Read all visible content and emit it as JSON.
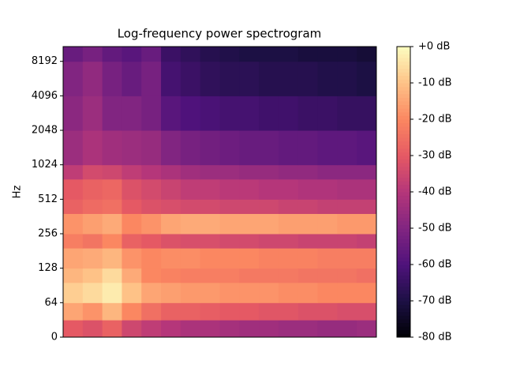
{
  "chart_data": {
    "type": "heatmap",
    "title": "Log-frequency power spectrogram",
    "ylabel": "Hz",
    "yscale": "symlog",
    "colormap": "magma",
    "ylim": [
      0,
      11025
    ],
    "yticks": [
      0,
      64,
      128,
      256,
      512,
      1024,
      2048,
      4096,
      8192
    ],
    "y_edges": [
      0,
      32,
      64,
      96,
      128,
      192,
      256,
      384,
      512,
      768,
      1024,
      2048,
      4096,
      8192,
      11025
    ],
    "z": [
      [
        -30,
        -32,
        -28,
        -35,
        -38,
        -40,
        -42,
        -42,
        -43,
        -44,
        -44,
        -45,
        -45,
        -46,
        -46,
        -45
      ],
      [
        -15,
        -18,
        -12,
        -20,
        -25,
        -28,
        -28,
        -29,
        -30,
        -30,
        -31,
        -31,
        -32,
        -32,
        -33,
        -33
      ],
      [
        -8,
        -6,
        -3,
        -10,
        -15,
        -16,
        -17,
        -17,
        -18,
        -18,
        -18,
        -19,
        -19,
        -20,
        -20,
        -20
      ],
      [
        -12,
        -10,
        -6,
        -14,
        -20,
        -21,
        -22,
        -22,
        -22,
        -23,
        -23,
        -23,
        -24,
        -24,
        -24,
        -25
      ],
      [
        -15,
        -14,
        -12,
        -18,
        -20,
        -19,
        -19,
        -20,
        -20,
        -20,
        -21,
        -21,
        -21,
        -22,
        -22,
        -22
      ],
      [
        -22,
        -24,
        -20,
        -28,
        -30,
        -32,
        -33,
        -33,
        -34,
        -34,
        -35,
        -35,
        -36,
        -36,
        -36,
        -37
      ],
      [
        -18,
        -16,
        -14,
        -20,
        -18,
        -15,
        -14,
        -14,
        -15,
        -15,
        -15,
        -16,
        -16,
        -16,
        -17,
        -17
      ],
      [
        -28,
        -26,
        -25,
        -30,
        -32,
        -33,
        -34,
        -34,
        -35,
        -35,
        -35,
        -36,
        -36,
        -37,
        -37,
        -37
      ],
      [
        -30,
        -28,
        -27,
        -32,
        -34,
        -36,
        -38,
        -38,
        -39,
        -39,
        -40,
        -40,
        -41,
        -41,
        -42,
        -42
      ],
      [
        -38,
        -34,
        -35,
        -38,
        -40,
        -42,
        -44,
        -45,
        -45,
        -46,
        -46,
        -47,
        -47,
        -48,
        -48,
        -48
      ],
      [
        -45,
        -42,
        -44,
        -45,
        -46,
        -50,
        -52,
        -53,
        -54,
        -55,
        -55,
        -56,
        -56,
        -57,
        -57,
        -58
      ],
      [
        -48,
        -45,
        -50,
        -50,
        -52,
        -58,
        -60,
        -61,
        -62,
        -62,
        -63,
        -63,
        -64,
        -64,
        -65,
        -65
      ],
      [
        -50,
        -47,
        -52,
        -55,
        -52,
        -62,
        -64,
        -66,
        -67,
        -67,
        -68,
        -68,
        -68,
        -69,
        -69,
        -70
      ],
      [
        -55,
        -52,
        -56,
        -58,
        -55,
        -64,
        -66,
        -68,
        -69,
        -70,
        -70,
        -70,
        -71,
        -71,
        -71,
        -72
      ]
    ],
    "colorbar": {
      "lim": [
        -80,
        0
      ],
      "ticks": [
        {
          "value": 0,
          "label": "+0 dB"
        },
        {
          "value": -10,
          "label": "-10 dB"
        },
        {
          "value": -20,
          "label": "-20 dB"
        },
        {
          "value": -30,
          "label": "-30 dB"
        },
        {
          "value": -40,
          "label": "-40 dB"
        },
        {
          "value": -50,
          "label": "-50 dB"
        },
        {
          "value": -60,
          "label": "-60 dB"
        },
        {
          "value": -70,
          "label": "-70 dB"
        },
        {
          "value": -80,
          "label": "-80 dB"
        }
      ]
    }
  }
}
